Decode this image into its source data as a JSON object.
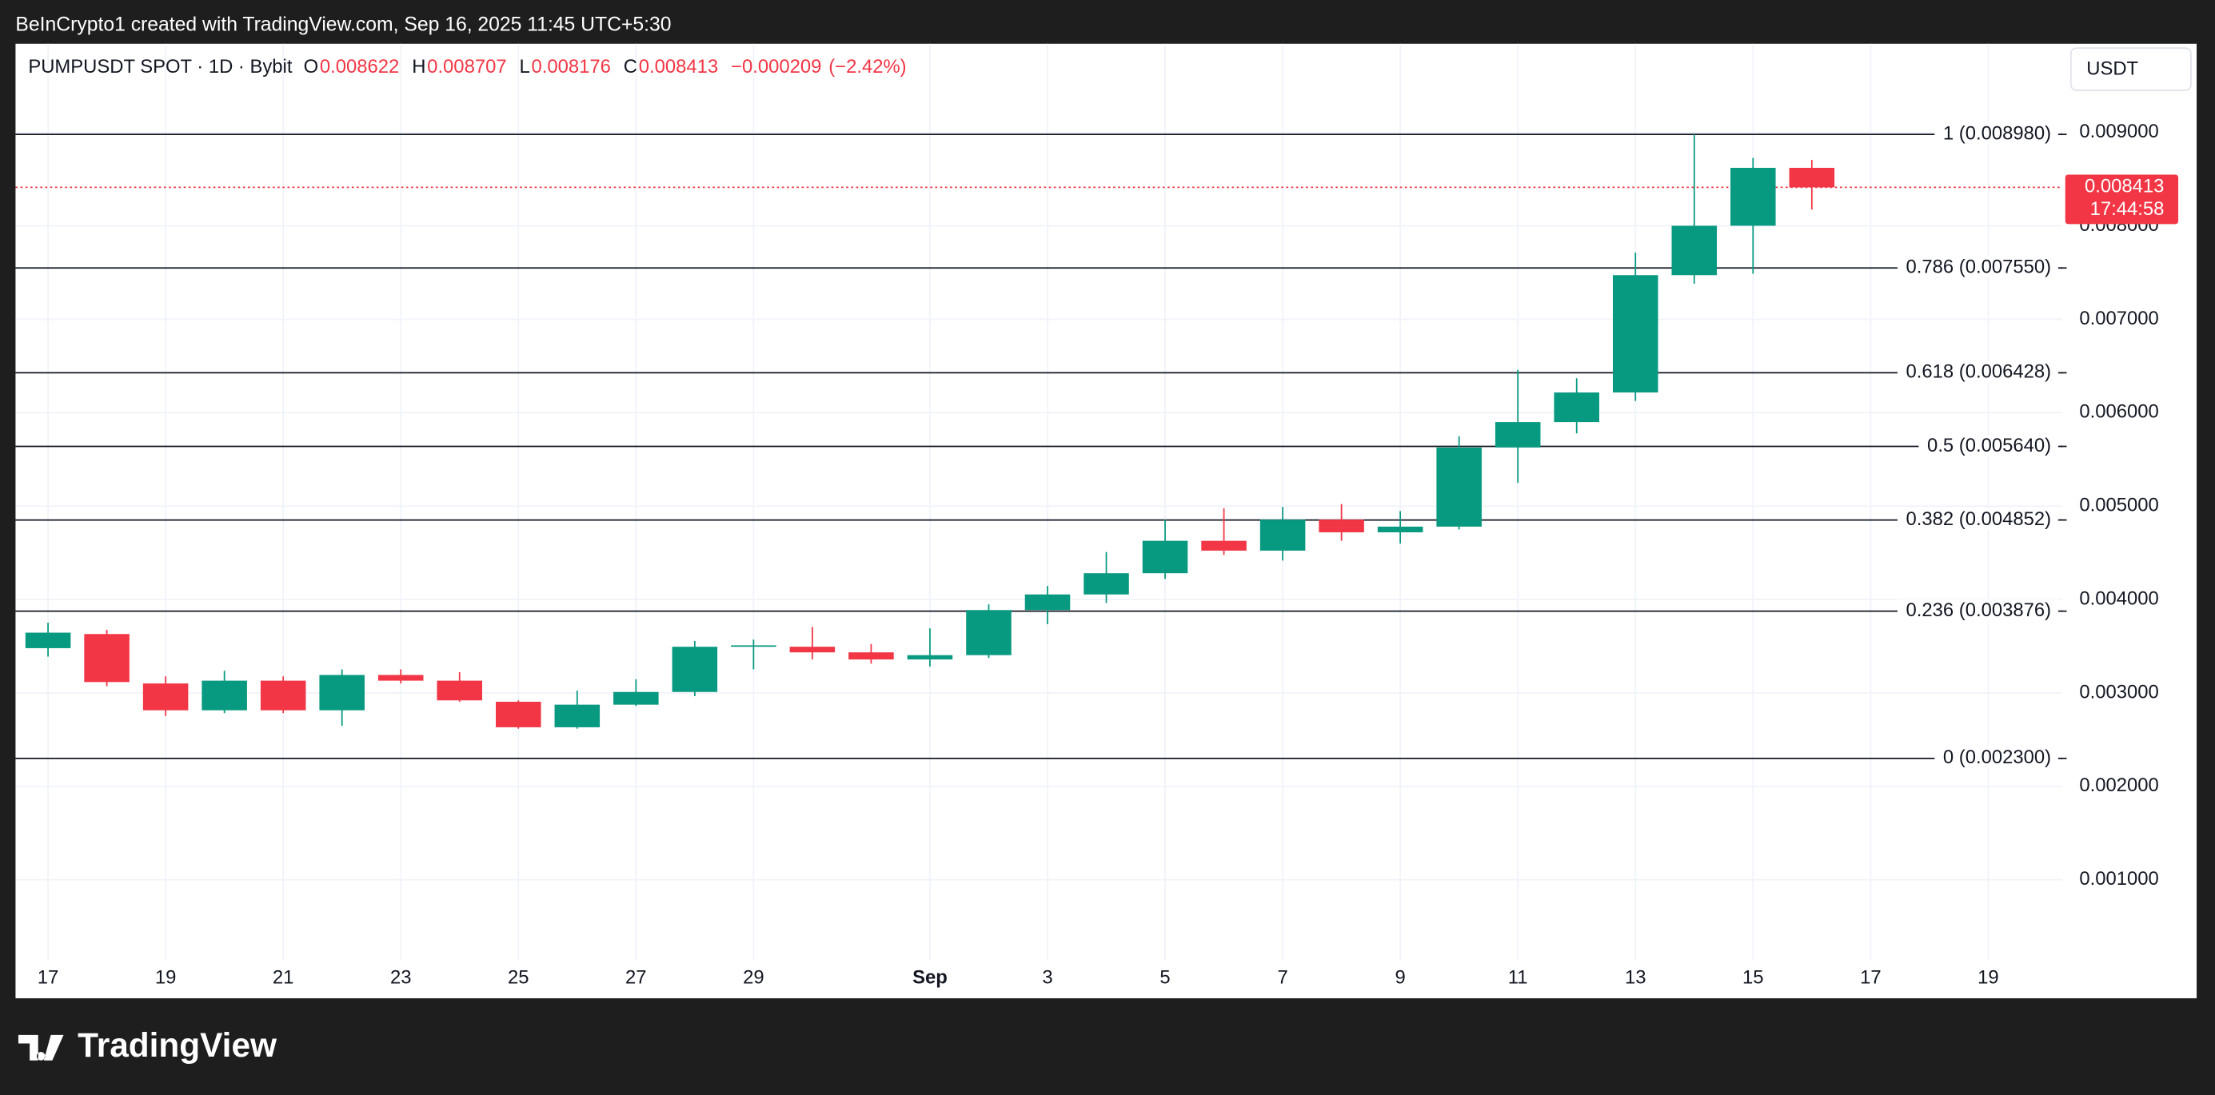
{
  "header": {
    "attribution": "BeInCrypto1 created with TradingView.com, Sep 16, 2025 11:45 UTC+5:30"
  },
  "chart_data": {
    "type": "candlestick",
    "symbol": "PUMPUSDT SPOT · 1D · Bybit",
    "ohlc_labels": [
      "O",
      "H",
      "L",
      "C"
    ],
    "change": {
      "value": -0.000209,
      "label": "−0.000209"
    },
    "change_percent": {
      "value": -2.42,
      "label": "(−2.42%)"
    },
    "currency": "USDT",
    "countdown": "17:44:58",
    "up_color": "#089981",
    "down_color": "#f23645",
    "level_color": "#131722",
    "grid": true,
    "categories": [
      "17",
      null,
      "19",
      null,
      "21",
      null,
      "23",
      null,
      "25",
      null,
      "27",
      null,
      "29",
      null,
      null,
      "Sep",
      null,
      "3",
      null,
      "5",
      null,
      "7",
      null,
      "9",
      null,
      "11",
      null,
      "13",
      null,
      "15",
      null,
      "17",
      null,
      "19",
      null
    ],
    "open": [
      0.00348,
      0.003631,
      0.003102,
      0.002815,
      0.003132,
      0.002815,
      0.003193,
      0.003132,
      0.002906,
      0.002633,
      0.002875,
      0.003011,
      0.003495,
      0.003495,
      0.003435,
      0.003359,
      0.003405,
      0.003888,
      0.004055,
      0.004282,
      0.004629,
      0.004524,
      0.004856,
      0.00472,
      0.004781,
      0.005628,
      0.0059,
      0.006217,
      0.007473,
      0.008002,
      0.008622,
      null,
      null,
      null,
      null
    ],
    "high": [
      0.003752,
      0.003677,
      0.003178,
      0.003238,
      0.003178,
      0.003253,
      0.003253,
      0.003223,
      0.002921,
      0.003026,
      0.003147,
      0.003556,
      0.003571,
      0.003707,
      0.003525,
      0.003692,
      0.003949,
      0.004146,
      0.004509,
      0.004856,
      0.004977,
      0.004992,
      0.005023,
      0.004947,
      0.005749,
      0.006459,
      0.006369,
      0.007715,
      0.00898,
      0.008728,
      0.008707,
      null,
      null,
      null,
      null
    ],
    "low": [
      0.003389,
      0.003072,
      0.002754,
      0.002785,
      0.002785,
      0.002648,
      0.003102,
      0.002906,
      0.002618,
      0.002618,
      0.00286,
      0.002966,
      0.003253,
      0.003359,
      0.003314,
      0.003283,
      0.003374,
      0.003737,
      0.003964,
      0.004221,
      0.004478,
      0.004418,
      0.004629,
      0.004599,
      0.00475,
      0.00525,
      0.005779,
      0.006127,
      0.007382,
      0.007488,
      0.008176,
      null,
      null,
      null,
      null
    ],
    "close": [
      0.003646,
      0.003117,
      0.002815,
      0.003132,
      0.002815,
      0.003193,
      0.003132,
      0.002921,
      0.002633,
      0.002875,
      0.003011,
      0.003495,
      0.00351,
      0.003435,
      0.003359,
      0.003405,
      0.003888,
      0.004055,
      0.004282,
      0.004629,
      0.004524,
      0.004856,
      0.00472,
      0.004781,
      0.005628,
      0.0059,
      0.006217,
      0.007473,
      0.008002,
      0.008622,
      0.008413,
      null,
      null,
      null,
      null
    ],
    "ylim": [
      0.00014,
      0.00995
    ],
    "yticks": [
      {
        "value": 0.001,
        "label": "0.001000"
      },
      {
        "value": 0.002,
        "label": "0.002000"
      },
      {
        "value": 0.003,
        "label": "0.003000"
      },
      {
        "value": 0.004,
        "label": "0.004000"
      },
      {
        "value": 0.005,
        "label": "0.005000"
      },
      {
        "value": 0.006,
        "label": "0.006000"
      },
      {
        "value": 0.007,
        "label": "0.007000"
      },
      {
        "value": 0.008,
        "label": "0.008000"
      },
      {
        "value": 0.009,
        "label": "0.009000"
      }
    ],
    "levels": [
      {
        "value": 0.00898,
        "label": "1 (0.008980)"
      },
      {
        "value": 0.00755,
        "label": "0.786 (0.007550)"
      },
      {
        "value": 0.006428,
        "label": "0.618 (0.006428)"
      },
      {
        "value": 0.00564,
        "label": "0.5 (0.005640)"
      },
      {
        "value": 0.004852,
        "label": "0.382 (0.004852)"
      },
      {
        "value": 0.003876,
        "label": "0.236 (0.003876)"
      },
      {
        "value": 0.0023,
        "label": "0 (0.002300)"
      }
    ]
  },
  "footer": {
    "logo": "TradingView"
  }
}
